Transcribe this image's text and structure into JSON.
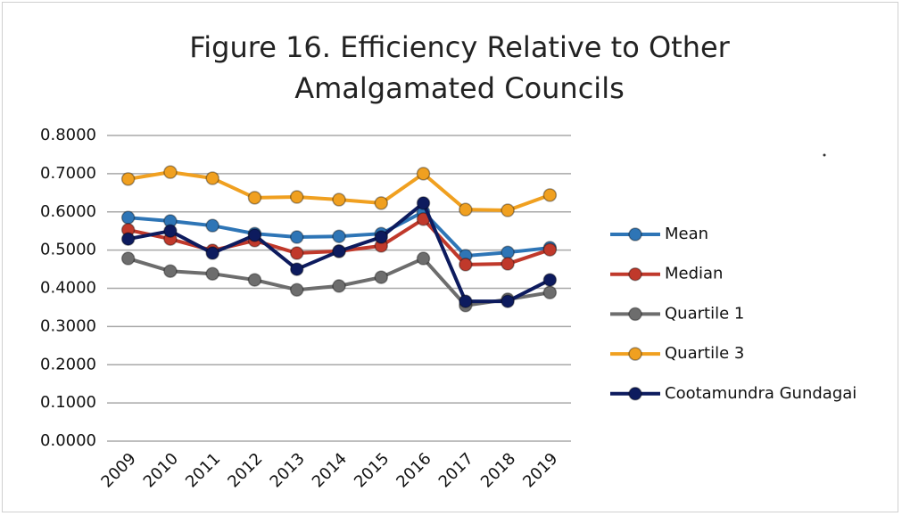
{
  "chart_data": {
    "type": "line",
    "title": "Figure 16. Efficiency Relative to Other Amalgamated Councils",
    "categories": [
      "2009",
      "2010",
      "2011",
      "2012",
      "2013",
      "2014",
      "2015",
      "2016",
      "2017",
      "2018",
      "2019"
    ],
    "series": [
      {
        "name": "Mean",
        "color": "#2e75b6",
        "values": [
          0.585,
          0.576,
          0.564,
          0.543,
          0.534,
          0.536,
          0.543,
          0.6,
          0.485,
          0.494,
          0.506
        ]
      },
      {
        "name": "Median",
        "color": "#c0392b",
        "values": [
          0.553,
          0.529,
          0.499,
          0.525,
          0.492,
          0.497,
          0.511,
          0.581,
          0.462,
          0.464,
          0.501
        ]
      },
      {
        "name": "Quartile 1",
        "color": "#6d6d6d",
        "values": [
          0.478,
          0.445,
          0.438,
          0.422,
          0.396,
          0.406,
          0.429,
          0.478,
          0.355,
          0.371,
          0.389
        ]
      },
      {
        "name": "Quartile 3",
        "color": "#f0a020",
        "values": [
          0.686,
          0.704,
          0.688,
          0.637,
          0.639,
          0.632,
          0.623,
          0.7,
          0.606,
          0.604,
          0.644
        ]
      },
      {
        "name": "Cootamundra Gundagai",
        "color": "#0d1b5e",
        "values": [
          0.529,
          0.55,
          0.492,
          0.539,
          0.45,
          0.497,
          0.534,
          0.623,
          0.366,
          0.366,
          0.422
        ]
      }
    ],
    "ylim": [
      0,
      0.8
    ],
    "yticks": [
      {
        "value": 0,
        "label": "0.0000"
      },
      {
        "value": 0.1,
        "label": "0.1000"
      },
      {
        "value": 0.2,
        "label": "0.2000"
      },
      {
        "value": 0.3,
        "label": "0.3000"
      },
      {
        "value": 0.4,
        "label": "0.4000"
      },
      {
        "value": 0.5,
        "label": "0.5000"
      },
      {
        "value": 0.6,
        "label": "0.6000"
      },
      {
        "value": 0.7,
        "label": "0.7000"
      },
      {
        "value": 0.8,
        "label": "0.8000"
      }
    ],
    "grid": true,
    "legend": "right"
  }
}
